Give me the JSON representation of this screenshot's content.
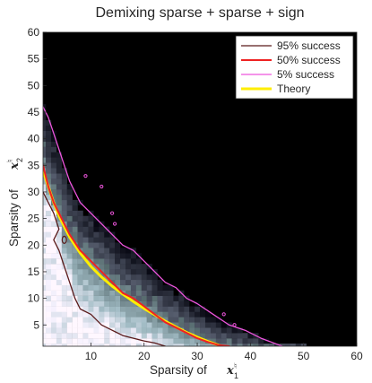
{
  "chart_data": {
    "type": "heatmap",
    "title": "Demixing sparse + sparse + sign",
    "xlabel": {
      "prefix": "Sparsity of ",
      "symbol": "x",
      "superscript": "♮",
      "subscript": "1"
    },
    "ylabel": {
      "prefix": "Sparsity of ",
      "symbol": "x",
      "superscript": "♮",
      "subscript": "2"
    },
    "xlim": [
      1,
      60
    ],
    "ylim": [
      1,
      60
    ],
    "xticks": [
      10,
      20,
      30,
      40,
      50,
      60
    ],
    "yticks": [
      5,
      10,
      15,
      20,
      25,
      30,
      35,
      40,
      45,
      50,
      55,
      60
    ],
    "colormap": "bone (black = 0% success, white = 100% success)",
    "legend": {
      "placement": "top-right",
      "entries": [
        {
          "label": "95% success",
          "color": "#5a1a1a"
        },
        {
          "label": "50% success",
          "color": "#ee2222"
        },
        {
          "label": "5% success",
          "color": "#ee55dd"
        },
        {
          "label": "Theory",
          "color": "#ffee00"
        }
      ]
    },
    "series": [
      {
        "name": "95% success",
        "x": [
          1,
          2,
          3,
          4,
          3,
          4,
          5,
          6,
          7,
          8,
          10,
          12,
          14,
          16,
          18,
          20,
          22,
          24
        ],
        "y": [
          30,
          28,
          26,
          23,
          21,
          19,
          16,
          13,
          10,
          8,
          7,
          5,
          4,
          3,
          2.5,
          2,
          1.6,
          1
        ]
      },
      {
        "name": "50% success",
        "x": [
          1,
          2,
          3,
          4,
          5,
          6,
          8,
          10,
          12,
          14,
          16,
          18,
          20,
          22,
          24,
          26,
          28,
          30,
          32,
          34,
          36
        ],
        "y": [
          35,
          31,
          28,
          26,
          24,
          22,
          19,
          17,
          15,
          13,
          11,
          10,
          8.5,
          7,
          5.5,
          4.5,
          3.5,
          2.5,
          1.8,
          1.2,
          1
        ]
      },
      {
        "name": "5% success",
        "x": [
          1,
          2,
          3,
          4,
          5,
          6,
          7,
          8,
          10,
          12,
          14,
          16,
          18,
          20,
          22,
          24,
          26,
          28,
          30,
          33,
          36,
          39,
          42,
          46
        ],
        "y": [
          46,
          44,
          41,
          38,
          35,
          32,
          30,
          28,
          26,
          24,
          22,
          20,
          19,
          17,
          15,
          13,
          12,
          10,
          9,
          7,
          5,
          4,
          2.5,
          1
        ]
      },
      {
        "name": "Theory",
        "x": [
          1,
          2,
          3,
          4,
          5,
          6,
          8,
          10,
          12,
          14,
          16,
          18,
          20,
          22,
          24,
          26,
          28,
          30,
          32,
          34,
          36
        ],
        "y": [
          34,
          31,
          28,
          25.5,
          23.5,
          21.5,
          18.5,
          16,
          14,
          12.3,
          10.8,
          9.4,
          8.1,
          6.9,
          5.7,
          4.6,
          3.6,
          2.7,
          1.9,
          1.2,
          0.6
        ]
      }
    ],
    "islands_5pct": [
      {
        "x": 12,
        "y": 31
      },
      {
        "x": 14,
        "y": 26
      },
      {
        "x": 14.5,
        "y": 24
      },
      {
        "x": 9,
        "y": 33
      },
      {
        "x": 35,
        "y": 7
      },
      {
        "x": 37,
        "y": 5
      }
    ],
    "islands_95pct": [
      {
        "x": 5,
        "y": 21
      }
    ]
  }
}
